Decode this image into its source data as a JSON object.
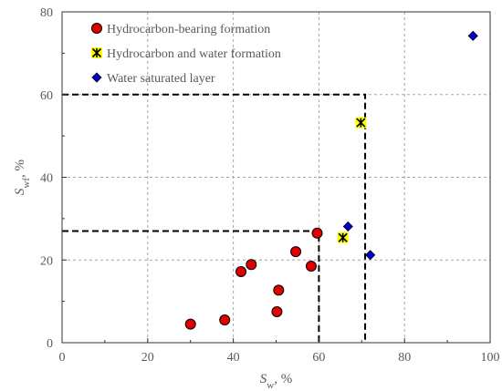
{
  "chart_data": {
    "type": "scatter",
    "xlabel": {
      "main": "S",
      "sub": "w",
      "unit": ", %"
    },
    "ylabel": {
      "main": "S",
      "sub": "wf",
      "unit": ", %"
    },
    "xlim": [
      0,
      100
    ],
    "ylim": [
      0,
      80
    ],
    "x_ticks": [
      "0",
      "20",
      "40",
      "60",
      "80",
      "100"
    ],
    "y_ticks": [
      "0",
      "20",
      "40",
      "60",
      "80"
    ],
    "grid": true,
    "legend_position": "top-left",
    "series": [
      {
        "name": "Hydrocarbon-bearing formation",
        "marker": "circle",
        "color": "#e00000",
        "points": [
          {
            "x": 30.0,
            "y": 4.5
          },
          {
            "x": 38.0,
            "y": 5.5
          },
          {
            "x": 41.8,
            "y": 17.2
          },
          {
            "x": 44.2,
            "y": 18.9
          },
          {
            "x": 50.2,
            "y": 7.5
          },
          {
            "x": 50.6,
            "y": 12.7
          },
          {
            "x": 54.6,
            "y": 22.0
          },
          {
            "x": 58.2,
            "y": 18.5
          },
          {
            "x": 59.6,
            "y": 26.5
          }
        ]
      },
      {
        "name": "Hydrocarbon and water formation",
        "marker": "asterisk-square",
        "color": "#ffff00",
        "points": [
          {
            "x": 65.6,
            "y": 25.4
          },
          {
            "x": 69.8,
            "y": 53.2
          }
        ]
      },
      {
        "name": "Water saturated layer",
        "marker": "diamond",
        "color": "#0000cc",
        "points": [
          {
            "x": 66.8,
            "y": 28.1
          },
          {
            "x": 72.0,
            "y": 21.2
          },
          {
            "x": 96.0,
            "y": 74.2
          }
        ]
      }
    ],
    "reference_lines": [
      {
        "points": [
          [
            0,
            27
          ],
          [
            60,
            27
          ],
          [
            60,
            0
          ]
        ]
      },
      {
        "points": [
          [
            0,
            60
          ],
          [
            70.8,
            60
          ],
          [
            70.8,
            0
          ]
        ]
      }
    ]
  }
}
